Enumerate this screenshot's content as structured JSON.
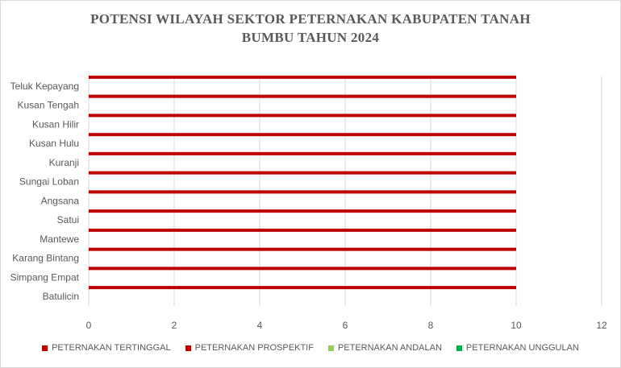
{
  "chart_data": {
    "type": "bar",
    "orientation": "horizontal",
    "title_lines": [
      "POTENSI WILAYAH SEKTOR PETERNAKAN KABUPATEN TANAH",
      "BUMBU TAHUN 2024"
    ],
    "categories": [
      "Teluk Kepayang",
      "Kusan Tengah",
      "Kusan Hilir",
      "Kusan Hulu",
      "Kuranji",
      "Sungai Loban",
      "Angsana",
      "Satui",
      "Mantewe",
      "Karang Bintang",
      "Simpang Empat",
      "Batulicin"
    ],
    "series": [
      {
        "name": "PETERNAKAN TERTINGGAL",
        "color": "#c00000",
        "values": [
          0,
          0,
          0,
          0,
          0,
          0,
          0,
          0,
          0,
          0,
          0,
          0
        ]
      },
      {
        "name": "PETERNAKAN PROSPEKTIF",
        "color": "#c00000",
        "values": [
          10,
          10,
          10,
          10,
          10,
          10,
          10,
          10,
          10,
          10,
          10,
          10
        ]
      },
      {
        "name": "PETERNAKAN ANDALAN",
        "color": "#92d050",
        "values": [
          0,
          0,
          0,
          0,
          0,
          0,
          0,
          0,
          0,
          0,
          0,
          0
        ]
      },
      {
        "name": "PETERNAKAN UNGGULAN",
        "color": "#00b050",
        "values": [
          0,
          0,
          0,
          0,
          0,
          0,
          0,
          0,
          0,
          0,
          0,
          0
        ]
      }
    ],
    "xticks": [
      "0",
      "2",
      "4",
      "6",
      "8",
      "10",
      "12"
    ],
    "xlim": [
      0,
      12
    ],
    "grid": "vertical",
    "legend_position": "bottom"
  }
}
